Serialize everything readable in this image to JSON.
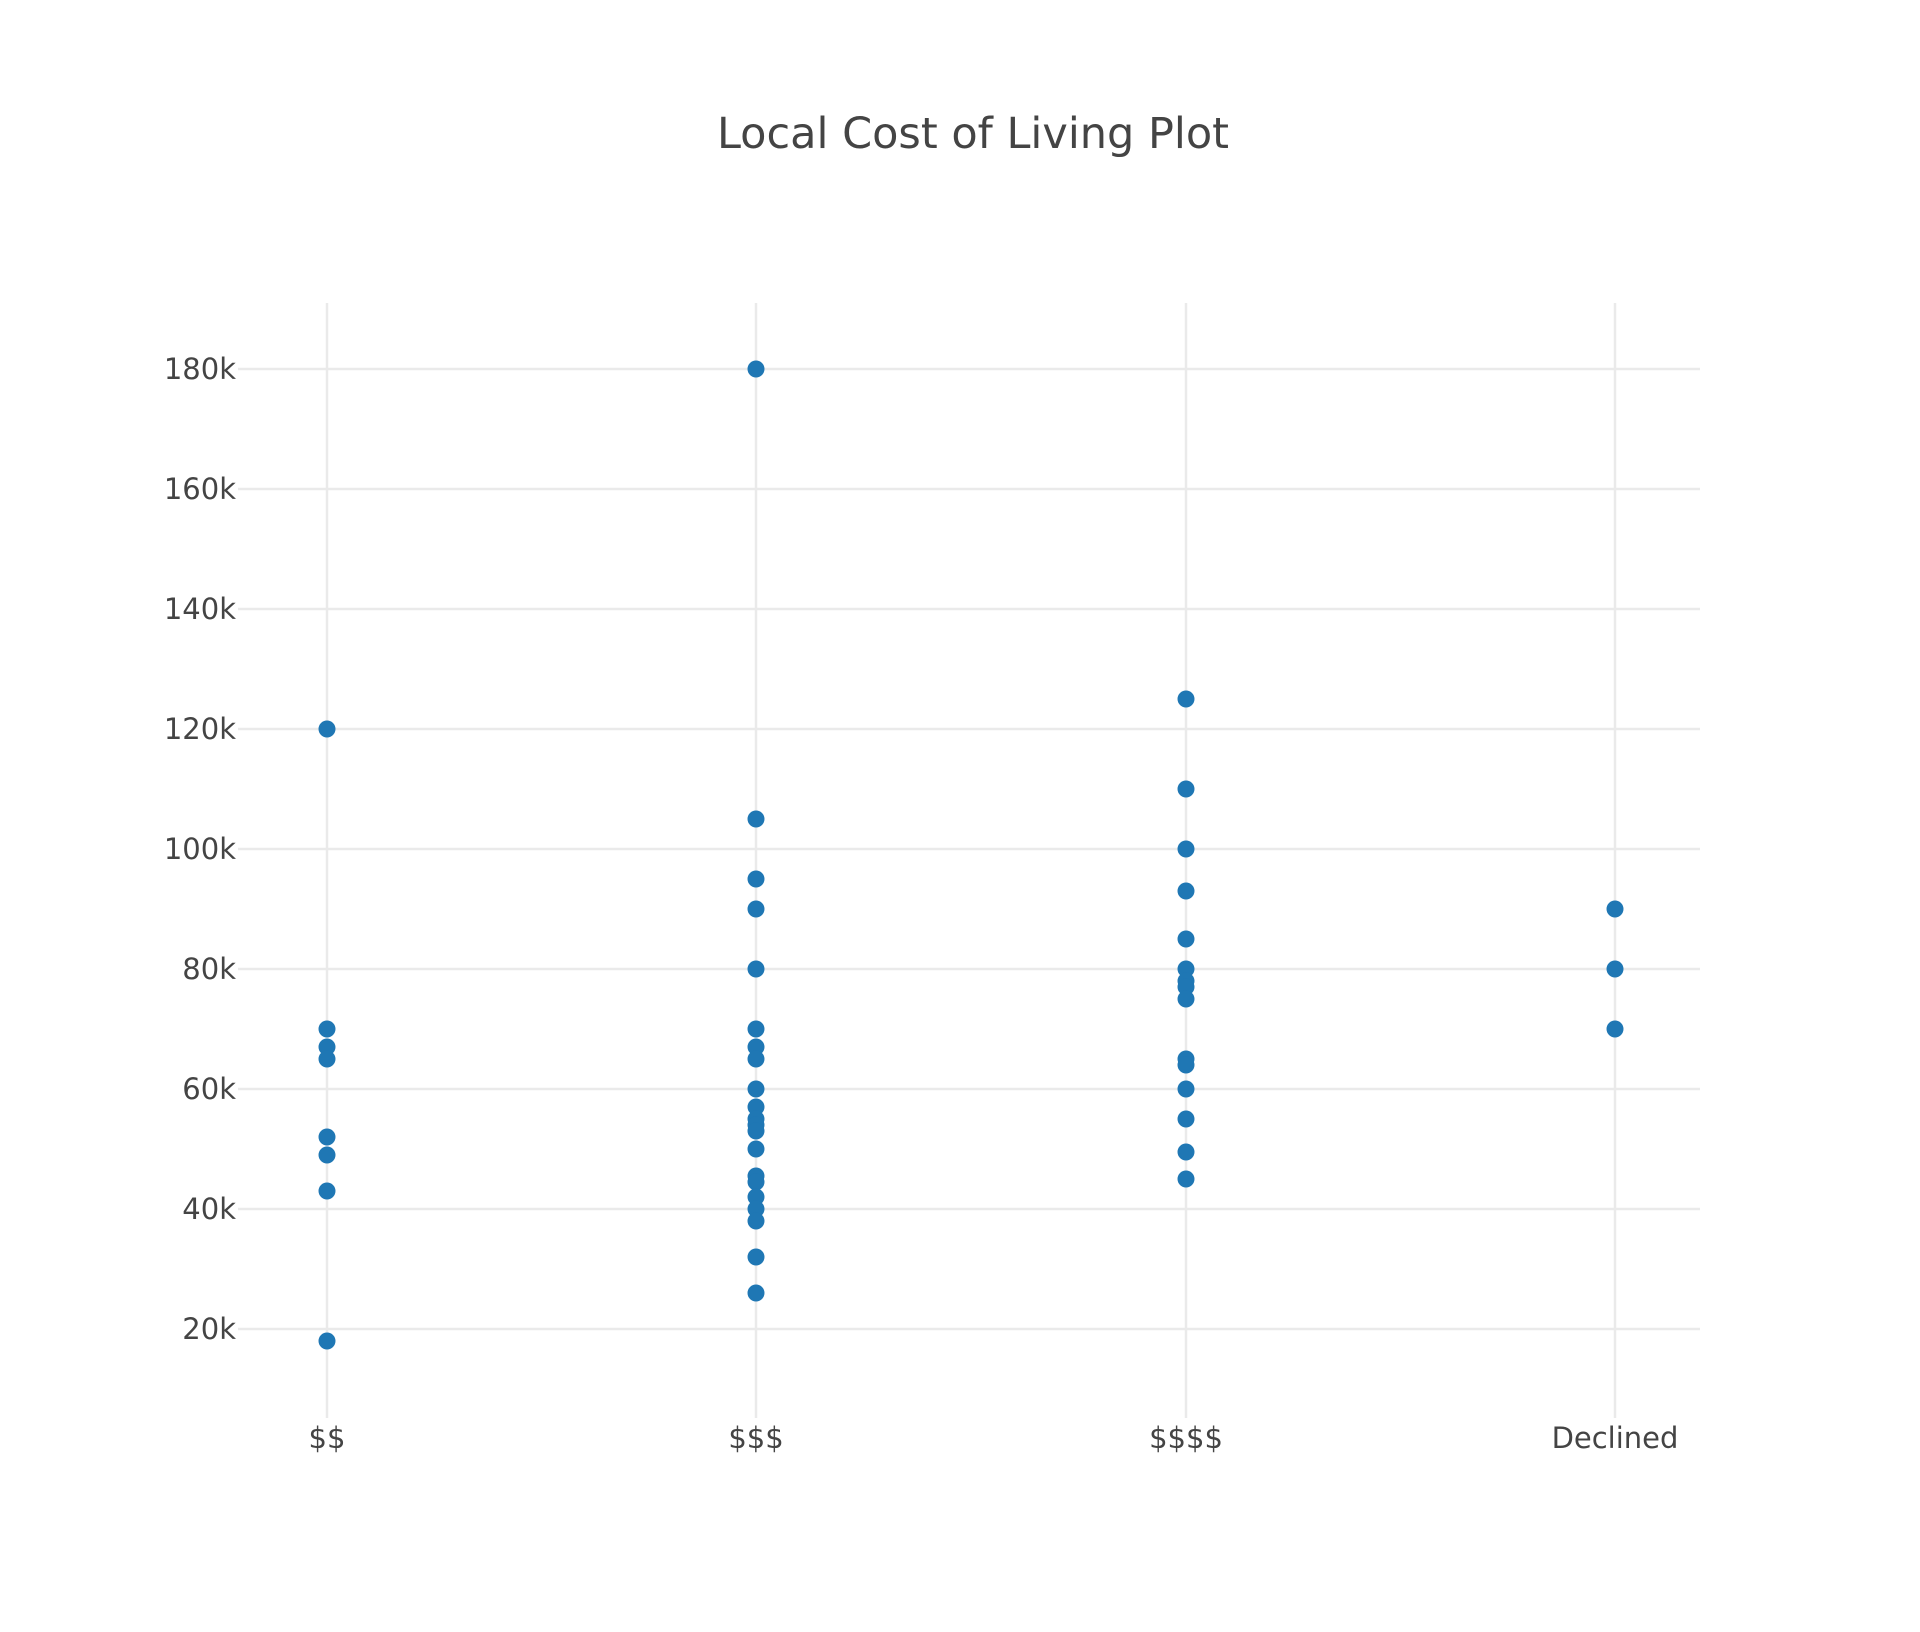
{
  "chart_data": {
    "type": "scatter",
    "title": "Local Cost of Living Plot",
    "xlabel": "",
    "ylabel": "",
    "categories": [
      "$$",
      "$$$",
      "$$$$",
      "Declined"
    ],
    "y_ticks": [
      20000,
      40000,
      60000,
      80000,
      100000,
      120000,
      140000,
      160000,
      180000
    ],
    "y_tick_labels": [
      "20k",
      "40k",
      "60k",
      "80k",
      "100k",
      "120k",
      "140k",
      "160k",
      "180k"
    ],
    "ylim": [
      9000,
      191000
    ],
    "grid": true,
    "legend": false,
    "color": "#1f77b4",
    "series": [
      {
        "points": [
          {
            "x": "$$",
            "y": 120000
          },
          {
            "x": "$$",
            "y": 70000
          },
          {
            "x": "$$",
            "y": 67000
          },
          {
            "x": "$$",
            "y": 65000
          },
          {
            "x": "$$",
            "y": 52000
          },
          {
            "x": "$$",
            "y": 49000
          },
          {
            "x": "$$",
            "y": 43000
          },
          {
            "x": "$$",
            "y": 18000
          },
          {
            "x": "$$$",
            "y": 180000
          },
          {
            "x": "$$$",
            "y": 105000
          },
          {
            "x": "$$$",
            "y": 95000
          },
          {
            "x": "$$$",
            "y": 90000
          },
          {
            "x": "$$$",
            "y": 80000
          },
          {
            "x": "$$$",
            "y": 70000
          },
          {
            "x": "$$$",
            "y": 67000
          },
          {
            "x": "$$$",
            "y": 65000
          },
          {
            "x": "$$$",
            "y": 60000
          },
          {
            "x": "$$$",
            "y": 57000
          },
          {
            "x": "$$$",
            "y": 55000
          },
          {
            "x": "$$$",
            "y": 54000
          },
          {
            "x": "$$$",
            "y": 53000
          },
          {
            "x": "$$$",
            "y": 50000
          },
          {
            "x": "$$$",
            "y": 45500
          },
          {
            "x": "$$$",
            "y": 44500
          },
          {
            "x": "$$$",
            "y": 42000
          },
          {
            "x": "$$$",
            "y": 40000
          },
          {
            "x": "$$$",
            "y": 38000
          },
          {
            "x": "$$$",
            "y": 32000
          },
          {
            "x": "$$$",
            "y": 26000
          },
          {
            "x": "$$$$",
            "y": 125000
          },
          {
            "x": "$$$$",
            "y": 110000
          },
          {
            "x": "$$$$",
            "y": 100000
          },
          {
            "x": "$$$$",
            "y": 93000
          },
          {
            "x": "$$$$",
            "y": 85000
          },
          {
            "x": "$$$$",
            "y": 80000
          },
          {
            "x": "$$$$",
            "y": 78000
          },
          {
            "x": "$$$$",
            "y": 77000
          },
          {
            "x": "$$$$",
            "y": 75000
          },
          {
            "x": "$$$$",
            "y": 65000
          },
          {
            "x": "$$$$",
            "y": 64000
          },
          {
            "x": "$$$$",
            "y": 60000
          },
          {
            "x": "$$$$",
            "y": 55000
          },
          {
            "x": "$$$$",
            "y": 49500
          },
          {
            "x": "$$$$",
            "y": 45000
          },
          {
            "x": "Declined",
            "y": 90000
          },
          {
            "x": "Declined",
            "y": 80000
          },
          {
            "x": "Declined",
            "y": 70000
          }
        ]
      }
    ]
  }
}
